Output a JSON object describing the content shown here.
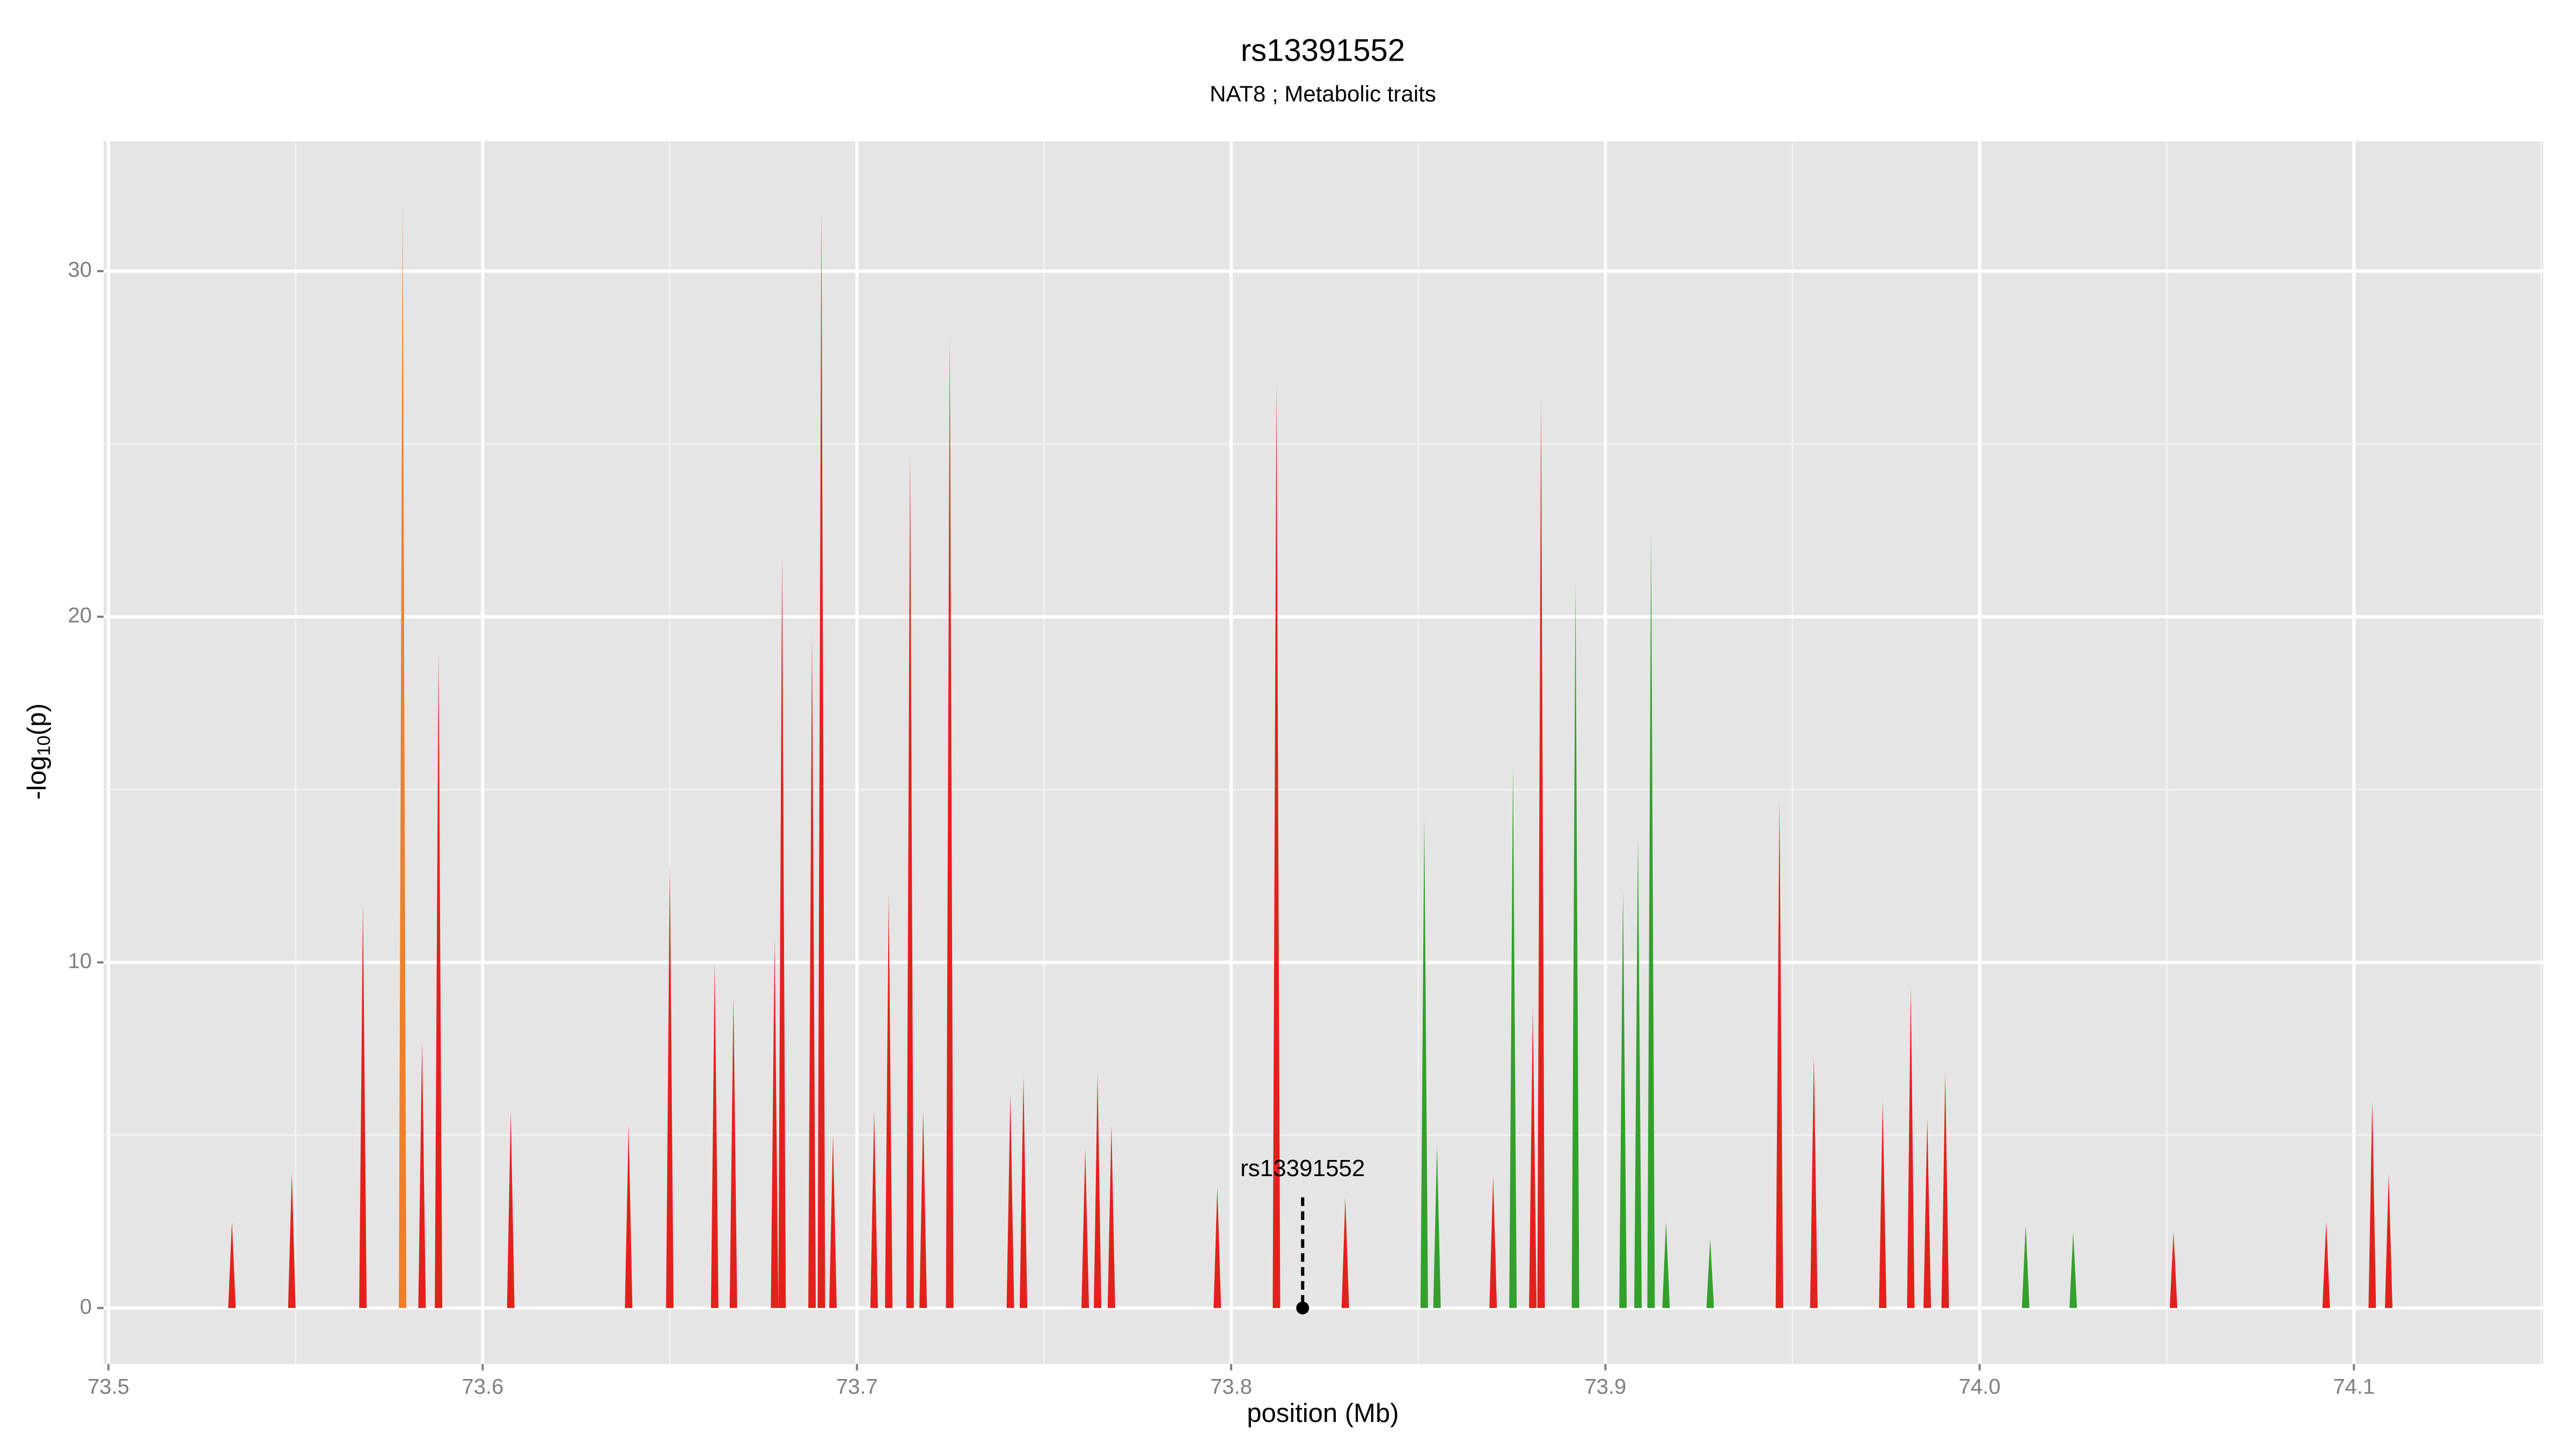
{
  "chart_data": {
    "type": "spike",
    "title": "rs13391552",
    "subtitle": "NAT8 ; Metabolic traits",
    "x_label": "position (Mb)",
    "y_label": {
      "prefix": "-log",
      "sub": "10",
      "suffix": "(p)"
    },
    "xlim": [
      73.4987,
      74.1506
    ],
    "ylim": [
      -1.62,
      33.76
    ],
    "xticks": [
      73.5,
      73.6,
      73.7,
      73.8,
      73.9,
      {
        "value": 74,
        "label": "74.0"
      },
      74.1
    ],
    "yticks": [
      0,
      10,
      20,
      30
    ],
    "xminor": [
      73.55,
      73.65,
      73.75,
      73.85,
      73.95,
      74.05,
      74.15
    ],
    "yminor": [
      5,
      15,
      25
    ],
    "grid": true,
    "series": [
      {
        "color": "#e3211c",
        "x": [
          73.533,
          73.549,
          73.568,
          73.5838,
          73.5882,
          73.6075,
          73.639,
          73.65,
          73.662,
          73.667,
          73.678,
          73.68,
          73.688,
          73.6905,
          73.6936,
          73.7046,
          73.7085,
          73.7142,
          73.7177,
          73.7248,
          73.741,
          73.7445,
          73.761,
          73.7643,
          73.768,
          73.7963,
          73.8121,
          73.8305,
          73.87,
          73.8806,
          73.8828,
          73.9465,
          73.9557,
          73.9741,
          73.9816,
          73.986,
          73.9908,
          74.0518,
          74.0926,
          74.1049,
          74.1093
        ],
        "values": [
          2.5,
          3.9,
          11.7,
          7.7,
          19,
          5.7,
          5.3,
          12.9,
          10,
          9,
          10.7,
          21.8,
          19.5,
          31.8,
          5,
          5.7,
          12,
          24.8,
          5.7,
          28.1,
          6.2,
          6.7,
          4.6,
          6.8,
          5.3,
          3.5,
          26.8,
          3.2,
          3.8,
          8.7,
          26.3,
          14.7,
          7.3,
          6,
          9.3,
          5.5,
          6.8,
          2.2,
          2.5,
          6,
          3.9
        ]
      },
      {
        "color": "#f07f2a",
        "x": [
          73.5786
        ],
        "values": [
          32
        ]
      },
      {
        "color": "#33a02c",
        "x": [
          73.8516,
          73.855,
          73.8753,
          73.892,
          73.9047,
          73.9087,
          73.9122,
          73.9162,
          73.928,
          74.0123,
          74.025
        ],
        "values": [
          14.2,
          4.7,
          15.7,
          21,
          12.1,
          13.6,
          22.4,
          2.5,
          2,
          2.4,
          2.2
        ]
      }
    ],
    "annotation": {
      "text": "rs13391552",
      "x": 73.8191
    }
  }
}
